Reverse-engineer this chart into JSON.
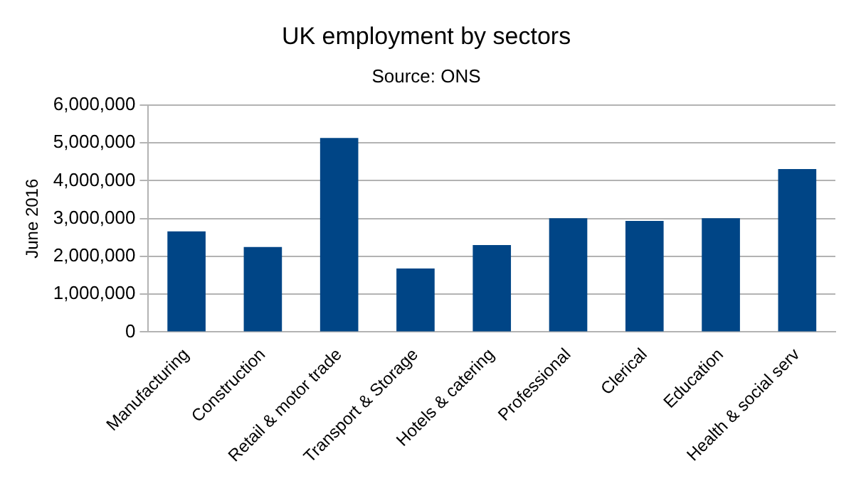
{
  "chart_data": {
    "type": "bar",
    "title": "UK employment by sectors",
    "subtitle": "Source: ONS",
    "ylabel": "June 2016",
    "categories": [
      "Manufacturing",
      "Construction",
      "Retail & motor trade",
      "Transport & Storage",
      "Hotels & catering",
      "Professional",
      "Clerical",
      "Education",
      "Health & social serv"
    ],
    "values": [
      2660000,
      2250000,
      5130000,
      1680000,
      2300000,
      3010000,
      2940000,
      3010000,
      4310000
    ],
    "color": "#004586",
    "ylim": [
      0,
      6000000
    ],
    "yticks": [
      0,
      {
        "value": 1000000,
        "label": "1,000,000"
      },
      {
        "value": 2000000,
        "label": "2,000,000"
      },
      {
        "value": 3000000,
        "label": "3,000,000"
      },
      {
        "value": 4000000,
        "label": "4,000,000"
      },
      {
        "value": 5000000,
        "label": "5,000,000"
      },
      {
        "value": 6000000,
        "label": "6,000,000"
      }
    ],
    "grid": "y",
    "legend": false
  }
}
